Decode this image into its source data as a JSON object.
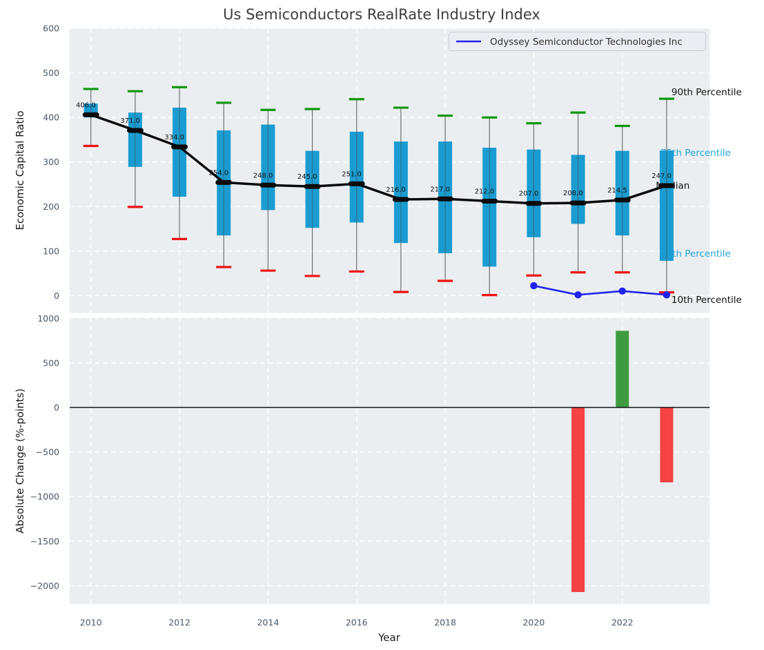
{
  "chart_data": [
    {
      "type": "boxplot",
      "panel": "top",
      "title": "Us Semiconductors RealRate Industry Index",
      "ylabel": "Economic Capital Ratio",
      "xlabel": "",
      "ylim": [
        -45,
        600
      ],
      "yticks": [
        600,
        500,
        400,
        300,
        200,
        100,
        0
      ],
      "xlim": [
        2009.5,
        2024.0
      ],
      "grid": "on",
      "xgrid_years": [
        2010,
        2012,
        2014,
        2016,
        2018,
        2020,
        2022
      ],
      "legend": {
        "position": "upper right",
        "label": "Odyssey Semiconductor Technologies Inc"
      },
      "annotations": {
        "p90": "90th Percentile",
        "p75": "75th Percentile",
        "median": "Median",
        "p25": "25th Percentile",
        "p10": "10th Percentile"
      },
      "boxes": [
        {
          "year": 2010,
          "p10": 336,
          "p25": 400,
          "median": 406,
          "p75": 431,
          "p90": 464,
          "median_label": "406.0"
        },
        {
          "year": 2011,
          "p10": 199,
          "p25": 289,
          "median": 371,
          "p75": 411,
          "p90": 459,
          "median_label": "371.0"
        },
        {
          "year": 2012,
          "p10": 127,
          "p25": 222,
          "median": 334,
          "p75": 422,
          "p90": 468,
          "median_label": "334.0"
        },
        {
          "year": 2013,
          "p10": 64,
          "p25": 135,
          "median": 254,
          "p75": 371,
          "p90": 433,
          "median_label": "254.0"
        },
        {
          "year": 2014,
          "p10": 56,
          "p25": 192,
          "median": 248,
          "p75": 384,
          "p90": 417,
          "median_label": "248.0"
        },
        {
          "year": 2015,
          "p10": 44,
          "p25": 152,
          "median": 245,
          "p75": 325,
          "p90": 419,
          "median_label": "245.0"
        },
        {
          "year": 2016,
          "p10": 54,
          "p25": 164,
          "median": 251,
          "p75": 368,
          "p90": 441,
          "median_label": "251.0"
        },
        {
          "year": 2017,
          "p10": 8,
          "p25": 118,
          "median": 216,
          "p75": 346,
          "p90": 422,
          "median_label": "216.0"
        },
        {
          "year": 2018,
          "p10": 33,
          "p25": 95,
          "median": 217,
          "p75": 346,
          "p90": 404,
          "median_label": "217.0"
        },
        {
          "year": 2019,
          "p10": 1,
          "p25": 65,
          "median": 212,
          "p75": 332,
          "p90": 400,
          "median_label": "212.0"
        },
        {
          "year": 2020,
          "p10": 45,
          "p25": 131,
          "median": 207,
          "p75": 328,
          "p90": 387,
          "median_label": "207.0"
        },
        {
          "year": 2021,
          "p10": 52,
          "p25": 161,
          "median": 208,
          "p75": 316,
          "p90": 411,
          "median_label": "208.0"
        },
        {
          "year": 2022,
          "p10": 52,
          "p25": 135,
          "median": 214.5,
          "p75": 325,
          "p90": 381,
          "median_label": "214.5"
        },
        {
          "year": 2023,
          "p10": 7,
          "p25": 78,
          "median": 247,
          "p75": 326,
          "p90": 442,
          "median_label": "247.0"
        }
      ],
      "series": [
        {
          "name": "Odyssey Semiconductor Technologies Inc",
          "x": [
            2020,
            2021,
            2022,
            2023
          ],
          "y": [
            22,
            1.5,
            10,
            1.5
          ]
        }
      ]
    },
    {
      "type": "bar",
      "panel": "bottom",
      "ylabel": "Absolute Change (%-points)",
      "xlabel": "Year",
      "ylim": [
        -2205,
        1010
      ],
      "yticks": [
        1000,
        500,
        0,
        -500,
        -1000,
        -1500,
        -2000
      ],
      "xticks": [
        2010,
        2012,
        2014,
        2016,
        2018,
        2020,
        2022
      ],
      "grid": "on",
      "zero_line": true,
      "bars": [
        {
          "year": 2021,
          "value": -2070,
          "color_role": "negative"
        },
        {
          "year": 2022,
          "value": 860,
          "color_role": "positive"
        },
        {
          "year": 2023,
          "value": -840,
          "color_role": "negative"
        }
      ]
    }
  ],
  "colors": {
    "panel_bg": "#eaeef0",
    "grid": "#ffffff",
    "box_fill": "#1b9cd1",
    "whisker": "#6f6f6f",
    "cap_90": "#0d970d",
    "cap_10": "#ee1111",
    "median_line": "#0a0a0a",
    "company_line": "#2222ee",
    "bar_positive": "#3d9c40",
    "bar_negative": "#f54242",
    "zero_line": "#111111",
    "tick_label": "#47586b",
    "axis_label": "#1a1a1a",
    "title": "#3d3d3d",
    "annotation_black": "#111111",
    "annotation_cyan": "#22a4d6",
    "legend_bg": "#ecedf2",
    "legend_border": "#c9cbd6",
    "legend_text": "#2e2e2e"
  }
}
